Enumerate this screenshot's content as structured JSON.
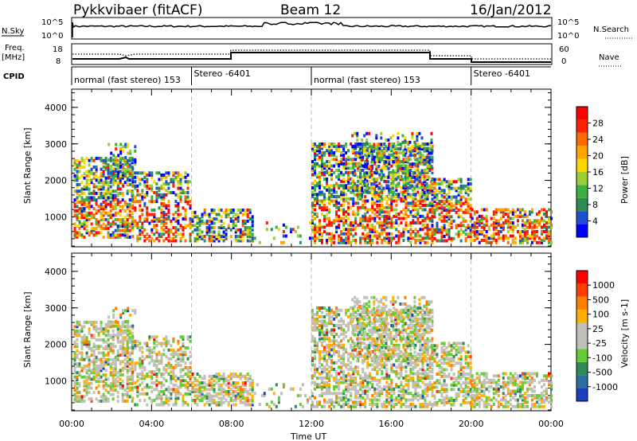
{
  "header": {
    "station": "Pykkvibaer (fitACF)",
    "beam": "Beam 12",
    "date": "16/Jan/2012"
  },
  "strip_labels": {
    "nsky": "N.Sky",
    "nsky_top": "10^5",
    "nsky_bot": "10^0",
    "nsearch": "N.Search",
    "nsearch_top": "10^5",
    "nsearch_bot": "10^0",
    "freq_line1": "Freq.",
    "freq_line2": "[MHz]",
    "freq_top": "18",
    "freq_bot": "8",
    "nave": "Nave",
    "nave_top": "60",
    "nave_bot": "0",
    "cpid": "CPID"
  },
  "cpid_segments": [
    {
      "label": "normal (fast stereo) 153",
      "start_h": 0
    },
    {
      "label": "Stereo -6401",
      "start_h": 6
    },
    {
      "label": "normal (fast stereo) 153",
      "start_h": 12
    },
    {
      "label": "Stereo -6401",
      "start_h": 20
    }
  ],
  "chart_data": [
    {
      "type": "heatmap",
      "name": "power",
      "ylabel": "Slant Range [km]",
      "ylim": [
        180,
        4500
      ],
      "yticks": [
        1000,
        2000,
        3000,
        4000
      ],
      "xlabel": "Time UT",
      "xlim_hours": [
        0,
        24
      ],
      "xtick_labels": [
        "00:00",
        "04:00",
        "08:00",
        "12:00",
        "16:00",
        "20:00",
        "00:00"
      ],
      "colorbar": {
        "label": "Power [dB]",
        "ticks": [
          "4",
          "8",
          "12",
          "16",
          "20",
          "24",
          "28"
        ],
        "colors": [
          "#0000ff",
          "#1f4fd0",
          "#2e8b57",
          "#3cb043",
          "#9acd32",
          "#ffd700",
          "#ffa500",
          "#ff6a00",
          "#ff2200",
          "#ff0000"
        ]
      }
    },
    {
      "type": "heatmap",
      "name": "velocity",
      "ylabel": "Slant Range [km]",
      "ylim": [
        180,
        4500
      ],
      "yticks": [
        1000,
        2000,
        3000,
        4000
      ],
      "xlabel": "Time UT",
      "xlim_hours": [
        0,
        24
      ],
      "xtick_labels": [
        "00:00",
        "04:00",
        "08:00",
        "12:00",
        "16:00",
        "20:00",
        "00:00"
      ],
      "colorbar": {
        "label": "Velocity [m s-1]",
        "ticks": [
          "1000",
          "500",
          "100",
          "25",
          "-25",
          "-100",
          "-500",
          "-1000"
        ],
        "colors": [
          "#1a3fbf",
          "#2a6fa0",
          "#2e8b57",
          "#66cc33",
          "#c0c0b8",
          "#c0c0b8",
          "#ffb000",
          "#ff8000",
          "#ff4000",
          "#ff0000"
        ]
      }
    }
  ],
  "xaxis_title": "Time UT"
}
